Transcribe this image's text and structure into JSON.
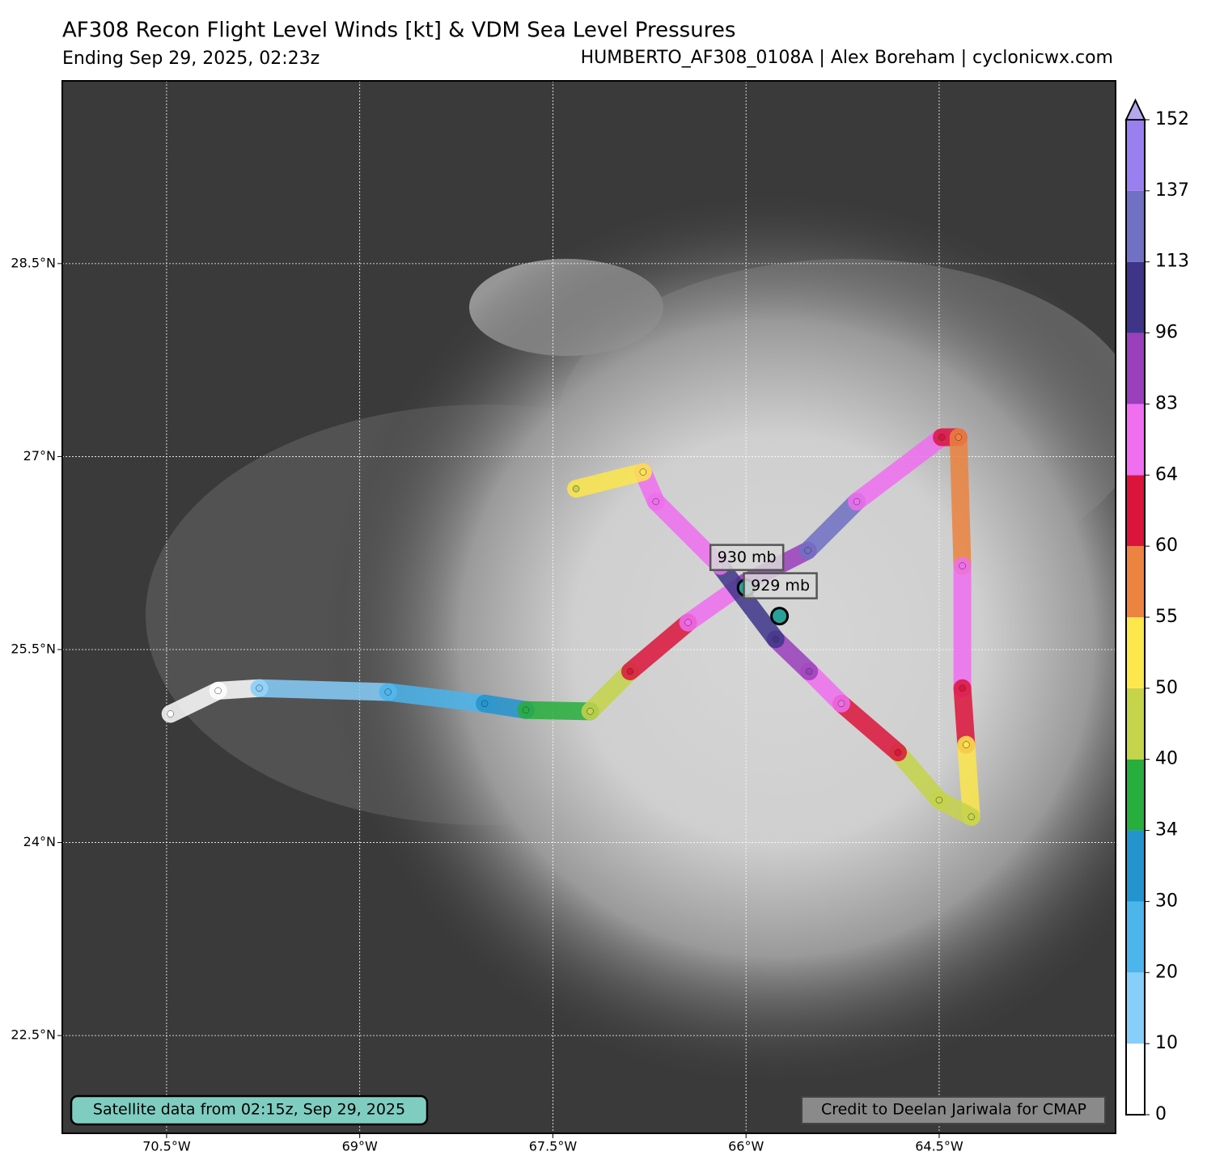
{
  "header": {
    "title": "AF308 Recon Flight Level Winds [kt] & VDM Sea Level Pressures",
    "subtitle_left": "Ending Sep 29, 2025, 02:23z",
    "subtitle_right": "HUMBERTO_AF308_0108A | Alex Boreham | cyclonicwx.com"
  },
  "map": {
    "xlim": [
      -71.31,
      -63.13
    ],
    "ylim": [
      21.74,
      29.92
    ],
    "xticks": [
      {
        "value": -70.5,
        "label": "70.5°W"
      },
      {
        "value": -69,
        "label": "69°W"
      },
      {
        "value": -67.5,
        "label": "67.5°W"
      },
      {
        "value": -66,
        "label": "66°W"
      },
      {
        "value": -64.5,
        "label": "64.5°W"
      }
    ],
    "yticks": [
      {
        "value": 22.5,
        "label": "22.5°N"
      },
      {
        "value": 24,
        "label": "24°N"
      },
      {
        "value": 25.5,
        "label": "25.5°N"
      },
      {
        "value": 27,
        "label": "27°N"
      },
      {
        "value": 28.5,
        "label": "28.5°N"
      }
    ],
    "grid": true
  },
  "colorbar": {
    "levels": [
      0,
      10,
      20,
      30,
      34,
      40,
      50,
      55,
      60,
      64,
      83,
      96,
      113,
      137,
      152
    ],
    "colors": [
      "#ffffff",
      "#87cefa",
      "#4bb5ec",
      "#2494cf",
      "#27ae3c",
      "#c5d44a",
      "#fde74c",
      "#ec8340",
      "#dc143c",
      "#f06ef0",
      "#9b3fbc",
      "#3e3589",
      "#7070c4",
      "#9a7ff0"
    ],
    "extend_color": "#b5a6ee"
  },
  "flight_track": [
    {
      "lon": -70.47,
      "lat": 25.0,
      "wind": 5
    },
    {
      "lon": -70.1,
      "lat": 25.18,
      "wind": 8
    },
    {
      "lon": -69.78,
      "lat": 25.2,
      "wind": 15
    },
    {
      "lon": -68.78,
      "lat": 25.17,
      "wind": 22
    },
    {
      "lon": -68.03,
      "lat": 25.08,
      "wind": 32
    },
    {
      "lon": -67.71,
      "lat": 25.03,
      "wind": 38
    },
    {
      "lon": -67.21,
      "lat": 25.02,
      "wind": 45
    },
    {
      "lon": -66.9,
      "lat": 25.33,
      "wind": 62
    },
    {
      "lon": -66.45,
      "lat": 25.71,
      "wind": 70
    },
    {
      "lon": -66.01,
      "lat": 26.02,
      "wind": 90
    },
    {
      "lon": -65.52,
      "lat": 26.27,
      "wind": 115
    },
    {
      "lon": -65.14,
      "lat": 26.65,
      "wind": 75
    },
    {
      "lon": -64.48,
      "lat": 27.15,
      "wind": 62
    },
    {
      "lon": -64.35,
      "lat": 27.15,
      "wind": 58
    },
    {
      "lon": -64.32,
      "lat": 26.15,
      "wind": 70
    },
    {
      "lon": -64.32,
      "lat": 25.2,
      "wind": 62
    },
    {
      "lon": -64.29,
      "lat": 24.76,
      "wind": 52
    },
    {
      "lon": -64.25,
      "lat": 24.2,
      "wind": 45
    },
    {
      "lon": -64.5,
      "lat": 24.33,
      "wind": 48
    },
    {
      "lon": -64.82,
      "lat": 24.7,
      "wind": 62
    },
    {
      "lon": -65.26,
      "lat": 25.08,
      "wind": 75
    },
    {
      "lon": -65.51,
      "lat": 25.33,
      "wind": 90
    },
    {
      "lon": -65.77,
      "lat": 25.58,
      "wind": 100
    },
    {
      "lon": -66.2,
      "lat": 26.15,
      "wind": 75
    },
    {
      "lon": -66.7,
      "lat": 26.65,
      "wind": 70
    },
    {
      "lon": -66.8,
      "lat": 26.88,
      "wind": 52
    },
    {
      "lon": -67.32,
      "lat": 26.75,
      "wind": 45
    }
  ],
  "vdm": [
    {
      "pressure": 930,
      "label": "930 mb",
      "lon": -66.0,
      "lat": 25.98
    },
    {
      "pressure": 929,
      "label": "929 mb",
      "lon": -65.74,
      "lat": 25.76
    }
  ],
  "notes": {
    "satellite": "Satellite data from 02:15z, Sep 29, 2025",
    "credit": "Credit to Deelan Jariwala for CMAP"
  }
}
